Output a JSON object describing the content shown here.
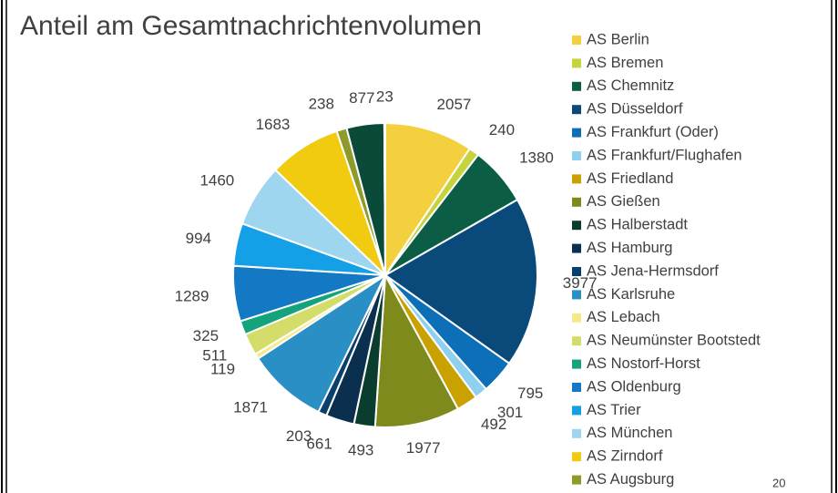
{
  "chart_data": {
    "type": "pie",
    "title": "Anteil am Gesamtnachrichtenvolumen",
    "categories": [
      "AS Berlin",
      "AS Bremen",
      "AS Chemnitz",
      "AS Düsseldorf",
      "AS Frankfurt (Oder)",
      "AS Frankfurt/Flughafen",
      "AS Friedland",
      "AS Gießen",
      "AS Halberstadt",
      "AS Hamburg",
      "AS Jena-Hermsdorf",
      "AS Karlsruhe",
      "AS Lebach",
      "AS Neumünster Bootstedt",
      "AS Nostorf-Horst",
      "AS Oldenburg",
      "AS Trier",
      "AS München",
      "AS Zirndorf",
      "AS Augsburg",
      null,
      null
    ],
    "values": [
      2057,
      240,
      1380,
      3977,
      795,
      301,
      492,
      1977,
      493,
      661,
      203,
      1871,
      119,
      511,
      325,
      1289,
      994,
      1460,
      1683,
      238,
      877,
      23
    ],
    "colors": [
      "#f4d03f",
      "#c5d33d",
      "#0b5e45",
      "#0a4a7a",
      "#0d6fb8",
      "#8fd0ee",
      "#c9a100",
      "#7f8a1c",
      "#0b3d2e",
      "#0a2f4f",
      "#0b3f6b",
      "#2a8fc4",
      "#f6e98a",
      "#d4dc6a",
      "#14a37a",
      "#1479c4",
      "#13a0e6",
      "#9fd6ef",
      "#f0cb10",
      "#8e9a2a",
      "#0b4a38",
      "#0a3350"
    ],
    "legend": "right"
  },
  "page_number": "20"
}
